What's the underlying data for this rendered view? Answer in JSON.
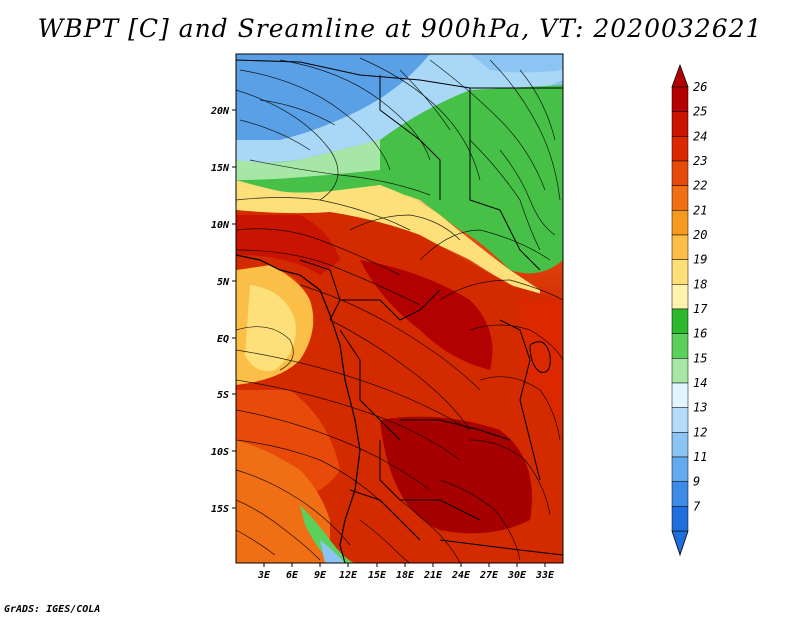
{
  "title": "WBPT [C] and Sreamline at 900hPa, VT: 2020032621",
  "credit": "GrADS: IGES/COLA",
  "y_ticks": [
    "20N",
    "15N",
    "10N",
    "5N",
    "EQ",
    "5S",
    "10S",
    "15S"
  ],
  "x_ticks": [
    "3E",
    "6E",
    "9E",
    "12E",
    "15E",
    "18E",
    "21E",
    "24E",
    "27E",
    "30E",
    "33E"
  ],
  "colorbar": {
    "labels": [
      "26",
      "25",
      "24",
      "23",
      "22",
      "21",
      "20",
      "19",
      "18",
      "17",
      "16",
      "15",
      "14",
      "13",
      "12",
      "11",
      "9",
      "7"
    ],
    "colors": [
      "#b30000",
      "#c81400",
      "#dc2800",
      "#e84a0a",
      "#f06e14",
      "#f89a1e",
      "#fbbf48",
      "#fde07a",
      "#fff2ad",
      "#2eb82e",
      "#5cd05c",
      "#a6e6a6",
      "#e0f5ff",
      "#b4dcfa",
      "#8cc4f4",
      "#64aaee",
      "#3c8ce6",
      "#1e6edc"
    ]
  }
}
